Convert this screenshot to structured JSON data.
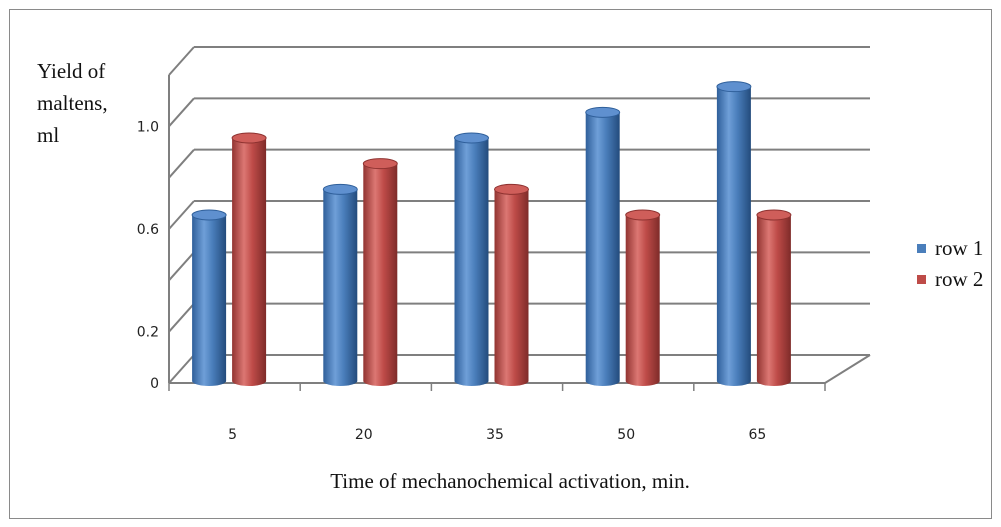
{
  "chart_data": {
    "type": "bar",
    "ylabel": "Yield of\nmaltens,\nml",
    "xlabel": "Time of mechanochemical activation, min.",
    "categories": [
      "5",
      "20",
      "35",
      "50",
      "65"
    ],
    "series": [
      {
        "name": "row 1",
        "values": [
          0.6,
          0.7,
          0.9,
          1.0,
          1.1
        ],
        "color": "#4a7ebb"
      },
      {
        "name": "row 2",
        "values": [
          0.9,
          0.8,
          0.7,
          0.6,
          0.6
        ],
        "color": "#be4b48"
      }
    ],
    "ylim": [
      0,
      1.2
    ],
    "yticks": [
      {
        "value": 0,
        "label": "0"
      },
      {
        "value": 0.2,
        "label": "0.2"
      },
      {
        "value": 0.4,
        "label": ""
      },
      {
        "value": 0.6,
        "label": "0.6"
      },
      {
        "value": 0.8,
        "label": ""
      },
      {
        "value": 1.0,
        "label": "1.0"
      },
      {
        "value": 1.2,
        "label": ""
      }
    ],
    "grid": true,
    "legend_position": "right",
    "style": "3d-cylinder"
  }
}
